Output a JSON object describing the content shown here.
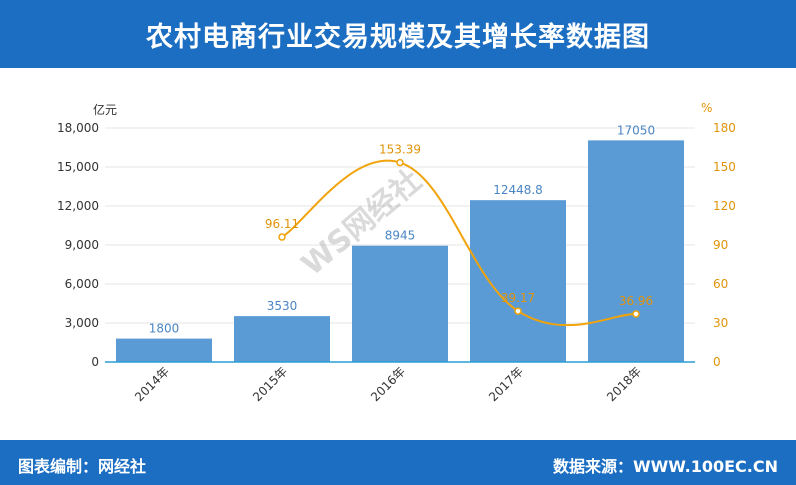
{
  "title": "农村电商行业交易规模及其增长率数据图",
  "footer": {
    "left": "图表编制：网经社",
    "right": "数据来源：WWW.100EC.CN"
  },
  "watermark": "WS网经社",
  "colors": {
    "header_bg": "#1b6ec2",
    "bar": "#5b9bd5",
    "line": "#f0a30a",
    "bar_label": "#4a86c5",
    "line_label": "#e0940a"
  },
  "chart_data": {
    "type": "bar",
    "categories": [
      "2014年",
      "2015年",
      "2016年",
      "2017年",
      "2018年"
    ],
    "series": [
      {
        "type": "bar",
        "axis": "left",
        "values": [
          1800,
          3530,
          8945,
          12448.8,
          17050
        ],
        "labels": [
          "1800",
          "3530",
          "8945",
          "12448.8",
          "17050"
        ]
      },
      {
        "type": "line",
        "axis": "right",
        "values": [
          null,
          96.11,
          153.39,
          39.17,
          36.96
        ],
        "labels": [
          "",
          "96.11",
          "153.39",
          "39.17",
          "36.96"
        ]
      }
    ],
    "yleft": {
      "label": "亿元",
      "ylim": [
        0,
        18000
      ],
      "ticks": [
        0,
        3000,
        6000,
        9000,
        12000,
        15000,
        18000
      ],
      "tick_labels": [
        "0",
        "3,000",
        "6,000",
        "9,000",
        "12,000",
        "15,000",
        "18,000"
      ]
    },
    "yright": {
      "label": "%",
      "ylim": [
        0,
        180
      ],
      "ticks": [
        0,
        30,
        60,
        90,
        120,
        150,
        180
      ],
      "tick_labels": [
        "0",
        "30",
        "60",
        "90",
        "120",
        "150",
        "180"
      ]
    },
    "grid": true,
    "legend": "none"
  }
}
